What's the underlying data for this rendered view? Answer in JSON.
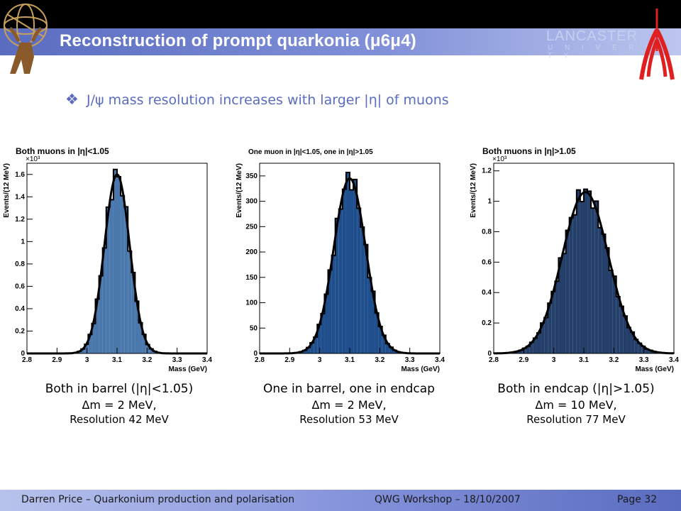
{
  "header": {
    "title": "Reconstruction of prompt quarkonia (μ6μ4)",
    "university_name": "LANCASTER",
    "university_sub": "U N I V E R S I T Y"
  },
  "headline": {
    "bullet": "❖",
    "text": "J/ψ mass resolution increases with larger |η| of muons"
  },
  "colors": {
    "accent": "#5a6cc0",
    "hist_barrel": "#4a78ad",
    "hist_mixed": "#1e4e8c",
    "hist_endcap": "#24406a",
    "title_white": "#ffffff",
    "logo_red": "#e02020"
  },
  "captions": [
    {
      "line1": "Both in barrel (|η|<1.05)",
      "line2": "Δm = 2 MeV,",
      "line3": "Resolution 42 MeV"
    },
    {
      "line1": "One in barrel, one in endcap",
      "line2": "Δm = 2 MeV,",
      "line3": "Resolution 53 MeV"
    },
    {
      "line1": "Both in endcap (|η|>1.05)",
      "line2": "Δm = 10 MeV,",
      "line3": "Resolution 77 MeV"
    }
  ],
  "footer": {
    "author": "Darren Price – Quarkonium production and polarisation",
    "event": "QWG Workshop – 18/10/2007",
    "page": "Page 32"
  },
  "chart_data": [
    {
      "type": "bar",
      "title": "Both muons in |η|<1.05",
      "xlabel": "Mass (GeV)",
      "ylabel": "Events/(12 MeV)",
      "y_multiplier": "×10³",
      "xlim": [
        2.8,
        3.4
      ],
      "ylim": [
        0,
        1.7
      ],
      "xticks": [
        "2.8",
        "2.9",
        "3",
        "3.1",
        "3.2",
        "3.3",
        "3.4"
      ],
      "yticks": [
        "0",
        "0.2",
        "0.4",
        "0.6",
        "0.8",
        "1",
        "1.2",
        "1.4",
        "1.6"
      ],
      "fit": {
        "mean": 3.1,
        "sigma": 0.042,
        "amp": 1.6
      },
      "bin_width": 0.012,
      "color": "#4a78ad"
    },
    {
      "type": "bar",
      "title": "One muon in |η|<1.05, one in |η|>1.05",
      "xlabel": "Mass (GeV)",
      "ylabel": "Events/(12 MeV)",
      "y_multiplier": "",
      "xlim": [
        2.8,
        3.4
      ],
      "ylim": [
        0,
        375
      ],
      "xticks": [
        "2.8",
        "2.9",
        "3",
        "3.1",
        "3.2",
        "3.3",
        "3.4"
      ],
      "yticks": [
        "0",
        "50",
        "100",
        "150",
        "200",
        "250",
        "300",
        "350"
      ],
      "fit": {
        "mean": 3.1,
        "sigma": 0.053,
        "amp": 345
      },
      "bin_width": 0.012,
      "color": "#1e4e8c"
    },
    {
      "type": "bar",
      "title": "Both muons in |η|>1.05",
      "xlabel": "Mass (GeV)",
      "ylabel": "Events/(12 MeV)",
      "y_multiplier": "×10³",
      "xlim": [
        2.8,
        3.4
      ],
      "ylim": [
        0,
        1.25
      ],
      "xticks": [
        "2.8",
        "2.9",
        "3",
        "3.1",
        "3.2",
        "3.3",
        "3.4"
      ],
      "yticks": [
        "0",
        "0.2",
        "0.4",
        "0.6",
        "0.8",
        "1",
        "1.2"
      ],
      "fit": {
        "mean": 3.105,
        "sigma": 0.077,
        "amp": 1.06
      },
      "bin_width": 0.012,
      "color": "#24406a"
    }
  ]
}
